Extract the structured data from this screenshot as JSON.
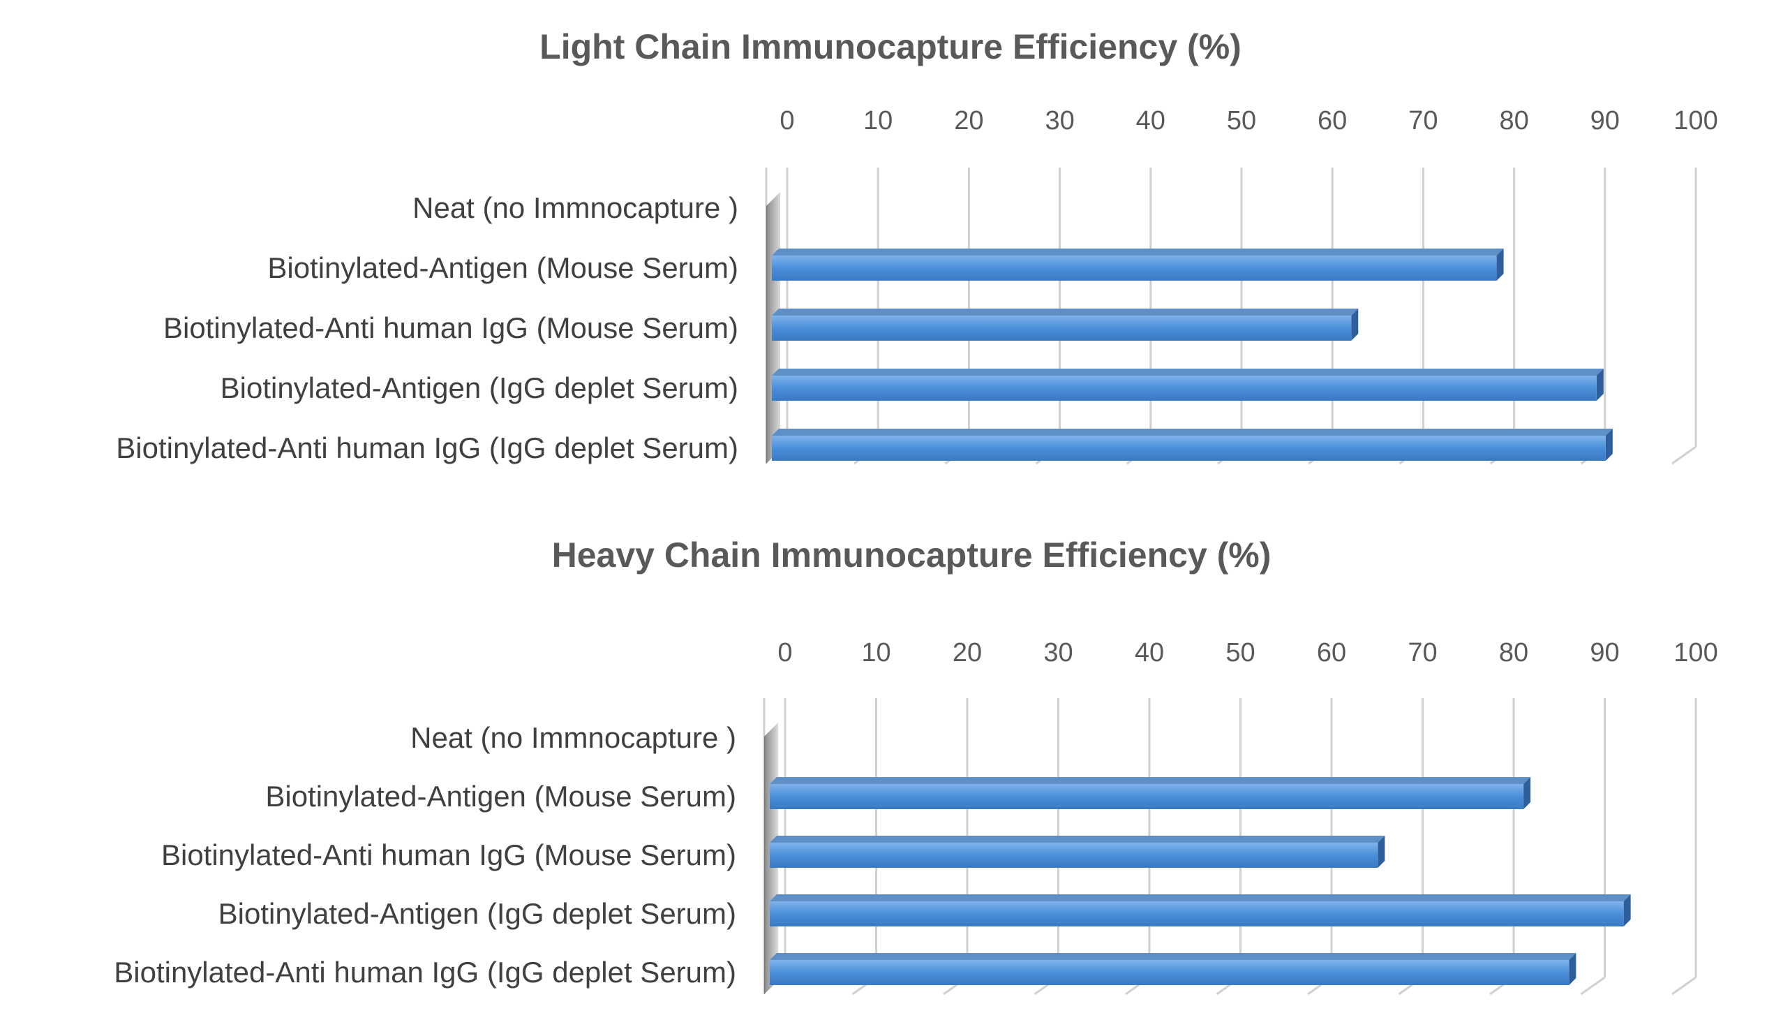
{
  "chart_data": [
    {
      "type": "bar",
      "orientation": "horizontal",
      "title": "Light Chain Immunocapture Efficiency (%)",
      "xlabel": "",
      "ylabel": "",
      "xlim": [
        0,
        100
      ],
      "ticks": [
        "0",
        "10",
        "20",
        "30",
        "40",
        "50",
        "60",
        "70",
        "80",
        "90",
        "100"
      ],
      "tick_position": "top",
      "grid": true,
      "style": "3d",
      "bar_color": "#4A8FD9",
      "categories": [
        "Neat (no Immnocapture )",
        "Biotinylated-Antigen (Mouse Serum)",
        "Biotinylated-Anti human IgG (Mouse Serum)",
        "Biotinylated-Antigen (IgG deplet Serum)",
        "Biotinylated-Anti human IgG (IgG deplet Serum)"
      ],
      "values": [
        0,
        79,
        63,
        90,
        91
      ]
    },
    {
      "type": "bar",
      "orientation": "horizontal",
      "title": "Heavy Chain Immunocapture Efficiency (%)",
      "xlabel": "",
      "ylabel": "",
      "xlim": [
        0,
        100
      ],
      "ticks": [
        "0",
        "10",
        "20",
        "30",
        "40",
        "50",
        "60",
        "70",
        "80",
        "90",
        "100"
      ],
      "tick_position": "top",
      "grid": true,
      "style": "3d",
      "bar_color": "#4A8FD9",
      "categories": [
        "Neat (no Immnocapture )",
        "Biotinylated-Antigen (Mouse Serum)",
        "Biotinylated-Anti human IgG (Mouse Serum)",
        "Biotinylated-Antigen (IgG deplet Serum)",
        "Biotinylated-Anti human IgG (IgG deplet Serum)"
      ],
      "values": [
        0,
        82,
        66,
        93,
        87
      ]
    }
  ]
}
